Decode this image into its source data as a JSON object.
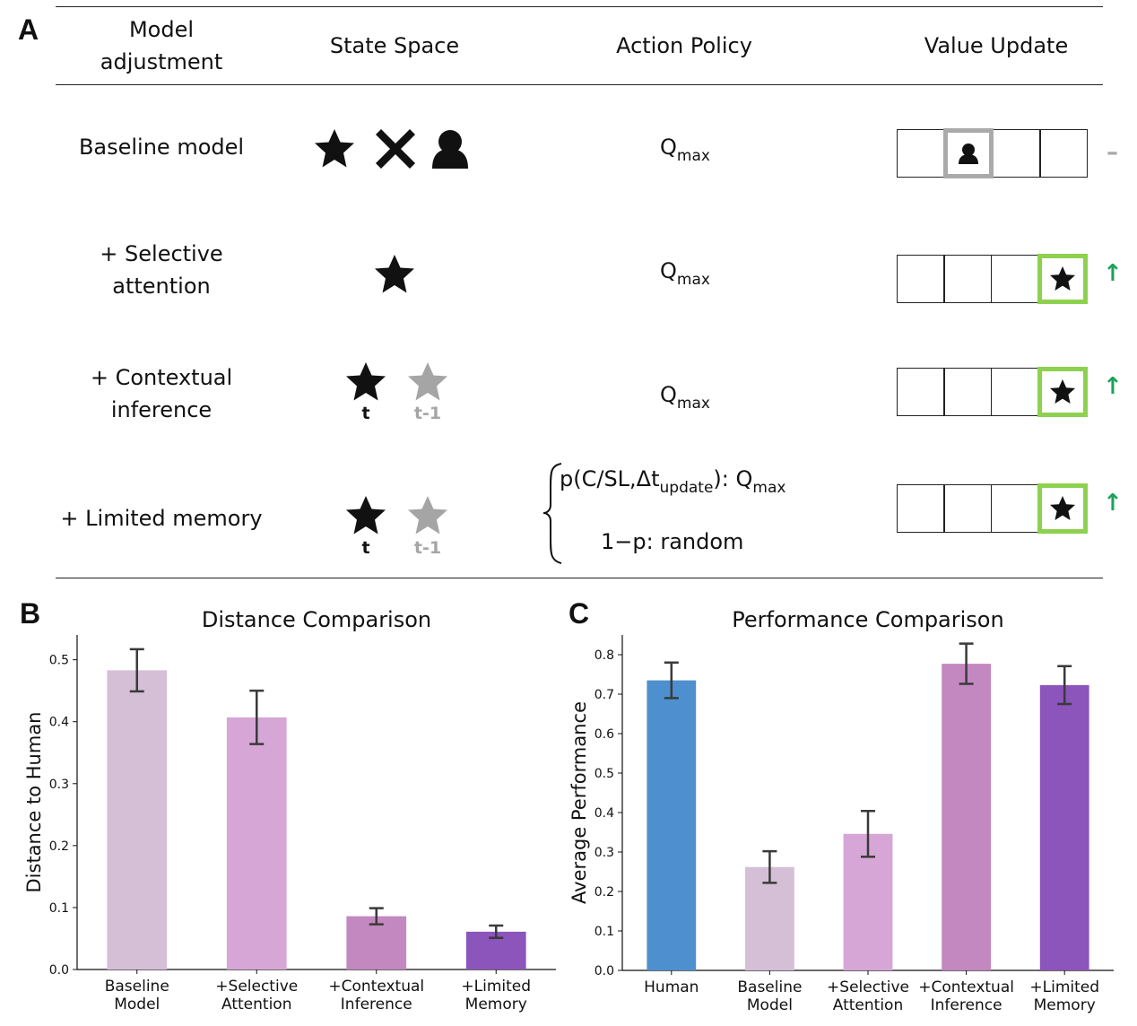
{
  "panels": {
    "a": "A",
    "b": "B",
    "c": "C"
  },
  "table": {
    "headers": [
      "Model\nadjustment",
      "State Space",
      "Action Policy",
      "Value Update"
    ],
    "rows": [
      {
        "label": "Baseline model",
        "state_icons": [
          "star-icon",
          "cross-icon",
          "person-icon"
        ],
        "policy_base": "Q",
        "policy_sub": "max",
        "highlight_cell": 2,
        "highlight_color": "#aaaaaa",
        "highlight_icon": "person-icon",
        "update_mark": "–",
        "update_color": "#aaaaaa"
      },
      {
        "label": "+ Selective\nattention",
        "state_icons": [
          "star-icon"
        ],
        "policy_base": "Q",
        "policy_sub": "max",
        "highlight_cell": 4,
        "highlight_color": "#8dd14f",
        "highlight_icon": "star-icon",
        "update_mark": "↑",
        "update_color": "#1aa35a"
      },
      {
        "label": "+ Contextual\ninference",
        "state_icons": [
          "star-icon",
          "star-icon-gray"
        ],
        "time_labels": [
          "t",
          "t-1"
        ],
        "policy_base": "Q",
        "policy_sub": "max",
        "highlight_cell": 4,
        "highlight_color": "#8dd14f",
        "highlight_icon": "star-icon",
        "update_mark": "↑",
        "update_color": "#1aa35a"
      },
      {
        "label": "+ Limited memory",
        "state_icons": [
          "star-icon",
          "star-icon-gray"
        ],
        "time_labels": [
          "t",
          "t-1"
        ],
        "policy_line1_a": "p(C/SL,Δt",
        "policy_line1_sub1": "update",
        "policy_line1_b": "): Q",
        "policy_line1_sub2": "max",
        "policy_line2": "1−p: random",
        "highlight_cell": 4,
        "highlight_color": "#8dd14f",
        "highlight_icon": "star-icon",
        "update_mark": "↑",
        "update_color": "#1aa35a"
      }
    ]
  },
  "chart_data": [
    {
      "type": "bar",
      "title": "Distance Comparison",
      "ylabel": "Distance to Human",
      "xlabel": "",
      "categories": [
        "Baseline\nModel",
        "+Selective\nAttention",
        "+Contextual\nInference",
        "+Limited\nMemory"
      ],
      "values": [
        0.483,
        0.407,
        0.086,
        0.061
      ],
      "errors": [
        0.034,
        0.043,
        0.013,
        0.01
      ],
      "colors": [
        "#d5bfd6",
        "#d6a6d6",
        "#c388c0",
        "#8b55bb"
      ],
      "ylim": [
        0,
        0.54
      ],
      "yticks": [
        "0.0",
        "0.1",
        "0.2",
        "0.3",
        "0.4",
        "0.5"
      ],
      "grid": false
    },
    {
      "type": "bar",
      "title": "Performance Comparison",
      "ylabel": "Average Performance",
      "xlabel": "",
      "categories": [
        "Human",
        "Baseline\nModel",
        "+Selective\nAttention",
        "+Contextual\nInference",
        "+Limited\nMemory"
      ],
      "values": [
        0.735,
        0.262,
        0.346,
        0.777,
        0.723
      ],
      "errors": [
        0.045,
        0.04,
        0.058,
        0.051,
        0.048
      ],
      "colors": [
        "#4e90cf",
        "#d5bfd6",
        "#d6a6d6",
        "#c388c0",
        "#8b55bb"
      ],
      "ylim": [
        0,
        0.85
      ],
      "yticks": [
        "0.0",
        "0.1",
        "0.2",
        "0.3",
        "0.4",
        "0.5",
        "0.6",
        "0.7",
        "0.8"
      ],
      "grid": false
    }
  ]
}
